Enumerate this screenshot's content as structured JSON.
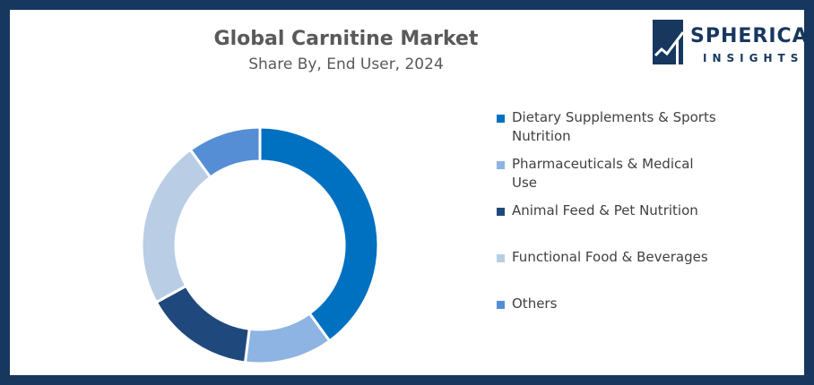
{
  "chart_data": {
    "type": "pie",
    "variant": "donut",
    "title": "Global Carnitine Market",
    "subtitle": "Share By, End User, 2024",
    "categories": [
      "Dietary Supplements & Sports Nutrition",
      "Pharmaceuticals & Medical Use",
      "Animal Feed & Pet Nutrition",
      "Functional Food & Beverages",
      "Others"
    ],
    "values": [
      40,
      12,
      15,
      23,
      10
    ],
    "colors": [
      "#0070c0",
      "#8db4e2",
      "#1f497d",
      "#b9cde5",
      "#558ed5"
    ],
    "legend_position": "right"
  },
  "logo": {
    "brand": "SPHERICAL",
    "tagline": "INSIGHTS",
    "color": "#17375e"
  }
}
